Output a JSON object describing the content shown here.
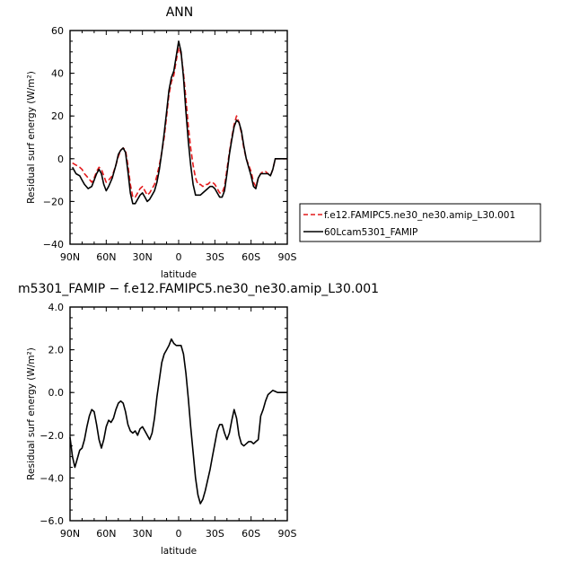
{
  "chart_data": [
    {
      "type": "line",
      "title": "ANN",
      "xlabel": "latitude",
      "ylabel": "Residual surf energy (W/m²)",
      "x_ticks": [
        "90N",
        "60N",
        "30N",
        "0",
        "30S",
        "60S",
        "90S"
      ],
      "y_ticks": [
        "60",
        "40",
        "20",
        "0",
        "−20",
        "−40"
      ],
      "xlim": [
        90,
        -90
      ],
      "ylim": [
        -40,
        60
      ],
      "grid": false,
      "legend": "outside-right",
      "series": [
        {
          "name": "f.e12.FAMIPC5.ne30_ne30.amip_L30.001",
          "color": "#e41a1c",
          "dash": "dashed",
          "x": [
            88,
            85,
            82,
            80,
            78,
            75,
            72,
            70,
            68,
            66,
            64,
            62,
            60,
            58,
            55,
            52,
            50,
            48,
            46,
            44,
            42,
            40,
            38,
            36,
            34,
            32,
            30,
            28,
            26,
            24,
            22,
            20,
            18,
            16,
            14,
            12,
            10,
            8,
            6,
            4,
            2,
            0,
            -2,
            -4,
            -6,
            -8,
            -10,
            -12,
            -14,
            -16,
            -18,
            -20,
            -22,
            -24,
            -26,
            -28,
            -30,
            -32,
            -34,
            -36,
            -38,
            -40,
            -42,
            -44,
            -46,
            -48,
            -50,
            -52,
            -54,
            -56,
            -58,
            -60,
            -62,
            -64,
            -66,
            -68,
            -70,
            -72,
            -74,
            -76,
            -78,
            -80,
            -82,
            -84,
            -86,
            -88,
            -90
          ],
          "y": [
            -2,
            -3,
            -4,
            -5,
            -7,
            -9,
            -11,
            -9,
            -6,
            -4,
            -5,
            -8,
            -11,
            -10,
            -8,
            -3,
            1,
            4,
            5,
            4,
            -3,
            -12,
            -18,
            -18,
            -16,
            -14,
            -13,
            -15,
            -17,
            -16,
            -14,
            -12,
            -8,
            -3,
            3,
            10,
            20,
            30,
            36,
            39,
            46,
            52,
            49,
            40,
            28,
            15,
            5,
            -3,
            -9,
            -12,
            -12,
            -13,
            -12,
            -12,
            -11,
            -11,
            -12,
            -14,
            -16,
            -16,
            -13,
            -5,
            3,
            10,
            16,
            20,
            17,
            12,
            5,
            0,
            -3,
            -6,
            -11,
            -13,
            -9,
            -7,
            -6,
            -6,
            -7,
            -8,
            -5,
            0,
            0,
            0,
            0,
            0,
            0
          ]
        },
        {
          "name": "60Lcam5301_FAMIP",
          "color": "#000000",
          "dash": "solid",
          "x": [
            88,
            85,
            82,
            80,
            78,
            75,
            72,
            70,
            68,
            66,
            64,
            62,
            60,
            58,
            55,
            52,
            50,
            48,
            46,
            44,
            42,
            40,
            38,
            36,
            34,
            32,
            30,
            28,
            26,
            24,
            22,
            20,
            18,
            16,
            14,
            12,
            10,
            8,
            6,
            4,
            2,
            0,
            -2,
            -4,
            -6,
            -8,
            -10,
            -12,
            -14,
            -16,
            -18,
            -20,
            -22,
            -24,
            -26,
            -28,
            -30,
            -32,
            -34,
            -36,
            -38,
            -40,
            -42,
            -44,
            -46,
            -48,
            -50,
            -52,
            -54,
            -56,
            -58,
            -60,
            -62,
            -64,
            -66,
            -68,
            -70,
            -72,
            -74,
            -76,
            -78,
            -80,
            -82,
            -84,
            -86,
            -88,
            -90
          ],
          "y": [
            -4,
            -7,
            -8,
            -10,
            -12,
            -14,
            -13,
            -10,
            -7,
            -5,
            -7,
            -12,
            -15,
            -13,
            -9,
            -3,
            2,
            4,
            5,
            3,
            -6,
            -16,
            -21,
            -21,
            -19,
            -17,
            -16,
            -18,
            -20,
            -19,
            -17,
            -15,
            -11,
            -5,
            3,
            12,
            22,
            32,
            38,
            41,
            48,
            55,
            50,
            38,
            22,
            8,
            -3,
            -12,
            -17,
            -17,
            -17,
            -16,
            -15,
            -14,
            -13,
            -13,
            -14,
            -16,
            -18,
            -18,
            -15,
            -7,
            2,
            9,
            15,
            18,
            17,
            13,
            6,
            0,
            -4,
            -8,
            -13,
            -14,
            -9,
            -7,
            -7,
            -7,
            -7,
            -8,
            -5,
            0,
            0,
            0,
            0,
            0,
            0
          ]
        }
      ]
    },
    {
      "type": "line",
      "title": "m5301_FAMIP − f.e12.FAMIPC5.ne30_ne30.amip_L30.001",
      "xlabel": "latitude",
      "ylabel": "Residual surf energy (W/m²)",
      "x_ticks": [
        "90N",
        "60N",
        "30N",
        "0",
        "30S",
        "60S",
        "90S"
      ],
      "y_ticks": [
        "4.0",
        "2.0",
        "0.0",
        "−2.0",
        "−4.0",
        "−6.0"
      ],
      "xlim": [
        90,
        -90
      ],
      "ylim": [
        -6,
        4
      ],
      "grid": false,
      "series": [
        {
          "name": "",
          "color": "#000000",
          "dash": "solid",
          "x": [
            90,
            88,
            86,
            84,
            82,
            80,
            78,
            76,
            74,
            72,
            70,
            68,
            66,
            64,
            62,
            60,
            58,
            56,
            54,
            52,
            50,
            48,
            46,
            44,
            42,
            40,
            38,
            36,
            34,
            32,
            30,
            28,
            26,
            24,
            22,
            20,
            18,
            16,
            14,
            12,
            10,
            8,
            6,
            4,
            2,
            0,
            -2,
            -4,
            -6,
            -8,
            -10,
            -12,
            -14,
            -16,
            -18,
            -20,
            -22,
            -24,
            -26,
            -28,
            -30,
            -32,
            -34,
            -36,
            -38,
            -40,
            -42,
            -44,
            -46,
            -48,
            -50,
            -52,
            -54,
            -56,
            -58,
            -60,
            -62,
            -64,
            -66,
            -68,
            -70,
            -72,
            -74,
            -76,
            -78,
            -80,
            -82,
            -84,
            -86,
            -88,
            -90
          ],
          "y": [
            -2.1,
            -3.0,
            -3.5,
            -3.1,
            -2.7,
            -2.6,
            -2.2,
            -1.6,
            -1.1,
            -0.8,
            -0.9,
            -1.5,
            -2.2,
            -2.6,
            -2.2,
            -1.6,
            -1.3,
            -1.4,
            -1.2,
            -0.8,
            -0.5,
            -0.4,
            -0.5,
            -0.9,
            -1.5,
            -1.8,
            -1.9,
            -1.8,
            -2.0,
            -1.7,
            -1.6,
            -1.8,
            -2.0,
            -2.2,
            -1.9,
            -1.2,
            -0.2,
            0.6,
            1.4,
            1.8,
            2.0,
            2.2,
            2.5,
            2.3,
            2.2,
            2.2,
            2.2,
            1.8,
            0.9,
            -0.3,
            -1.6,
            -2.8,
            -4.0,
            -4.8,
            -5.2,
            -5.0,
            -4.6,
            -4.1,
            -3.6,
            -3.0,
            -2.4,
            -1.8,
            -1.5,
            -1.5,
            -1.9,
            -2.2,
            -1.9,
            -1.3,
            -0.8,
            -1.2,
            -2.0,
            -2.4,
            -2.5,
            -2.4,
            -2.3,
            -2.3,
            -2.4,
            -2.3,
            -2.2,
            -1.1,
            -0.8,
            -0.4,
            -0.1,
            0.0,
            0.1,
            0.05,
            0.0,
            0.0,
            0.0,
            0.0,
            0.0
          ]
        }
      ]
    }
  ]
}
